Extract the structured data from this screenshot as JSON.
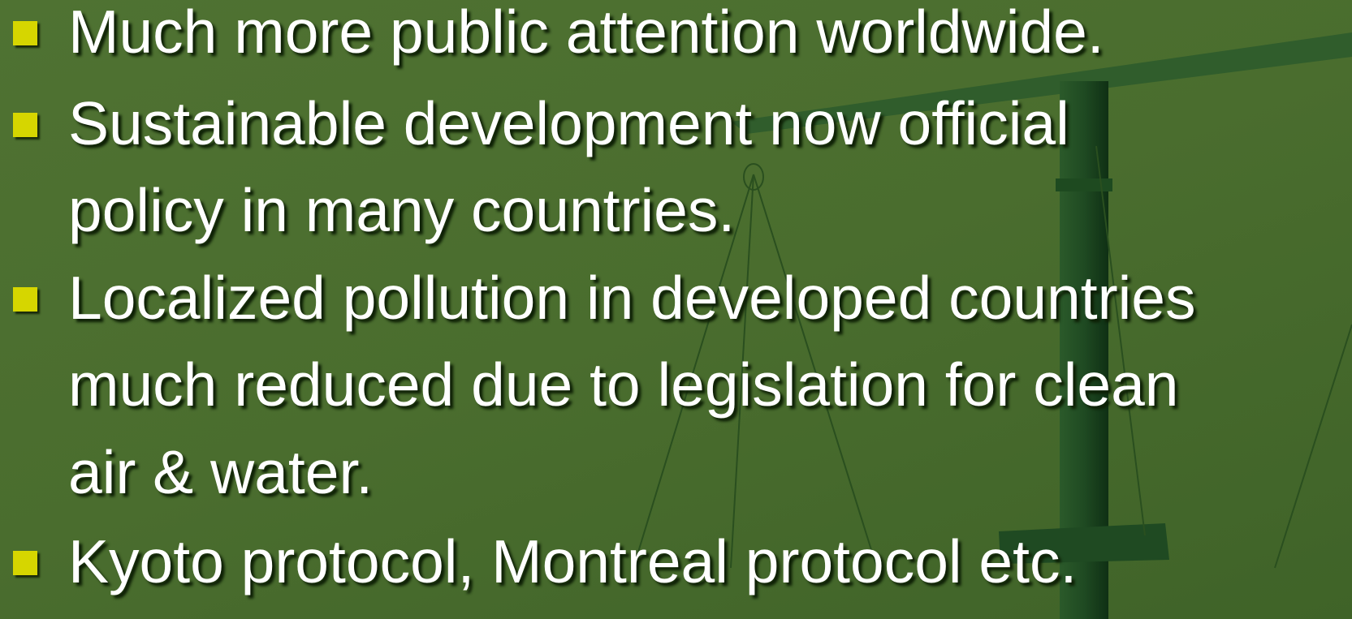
{
  "slide": {
    "bullets": [
      {
        "lines": [
          "Much more public attention worldwide."
        ]
      },
      {
        "lines": [
          "Sustainable development now official",
          "policy in many countries."
        ]
      },
      {
        "lines": [
          "Localized pollution in developed countries",
          "much reduced due to legislation for clean",
          "air & water."
        ]
      },
      {
        "lines": [
          "Kyoto protocol, Montreal protocol etc."
        ]
      }
    ]
  }
}
